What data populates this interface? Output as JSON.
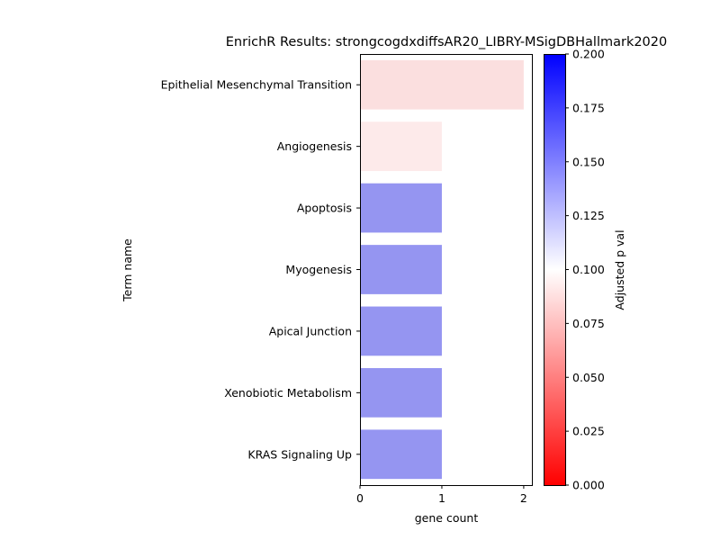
{
  "chart_data": {
    "type": "bar",
    "orientation": "horizontal",
    "title": "EnrichR Results: strongcogdxdiffsAR20_LIBRY-MSigDBHallmark2020",
    "xlabel": "gene count",
    "ylabel": "Term name",
    "xlim": [
      0,
      2.1
    ],
    "x_ticks": [
      "0",
      "1",
      "2"
    ],
    "categories": [
      "Epithelial Mesenchymal Transition",
      "Angiogenesis",
      "Apoptosis",
      "Myogenesis",
      "Apical Junction",
      "Xenobiotic Metabolism",
      "KRAS Signaling Up"
    ],
    "values": [
      2,
      1,
      1,
      1,
      1,
      1,
      1
    ],
    "adjusted_p_values": [
      0.08,
      0.09,
      0.155,
      0.155,
      0.155,
      0.155,
      0.155
    ],
    "bar_colors": [
      "#fbdcdc",
      "#fde8e8",
      "#8a8aef",
      "#8a8aef",
      "#8a8aef",
      "#8a8aef",
      "#8a8aef"
    ],
    "bar_opacity": 0.9,
    "colorbar": {
      "label": "Adjusted p val",
      "range": [
        0.0,
        0.2
      ],
      "ticks": [
        "0.000",
        "0.025",
        "0.050",
        "0.075",
        "0.100",
        "0.125",
        "0.150",
        "0.175",
        "0.200"
      ],
      "colormap": "bwr",
      "colors": [
        "#ff0000",
        "#ffffff",
        "#0000ff"
      ]
    },
    "grid": false
  }
}
